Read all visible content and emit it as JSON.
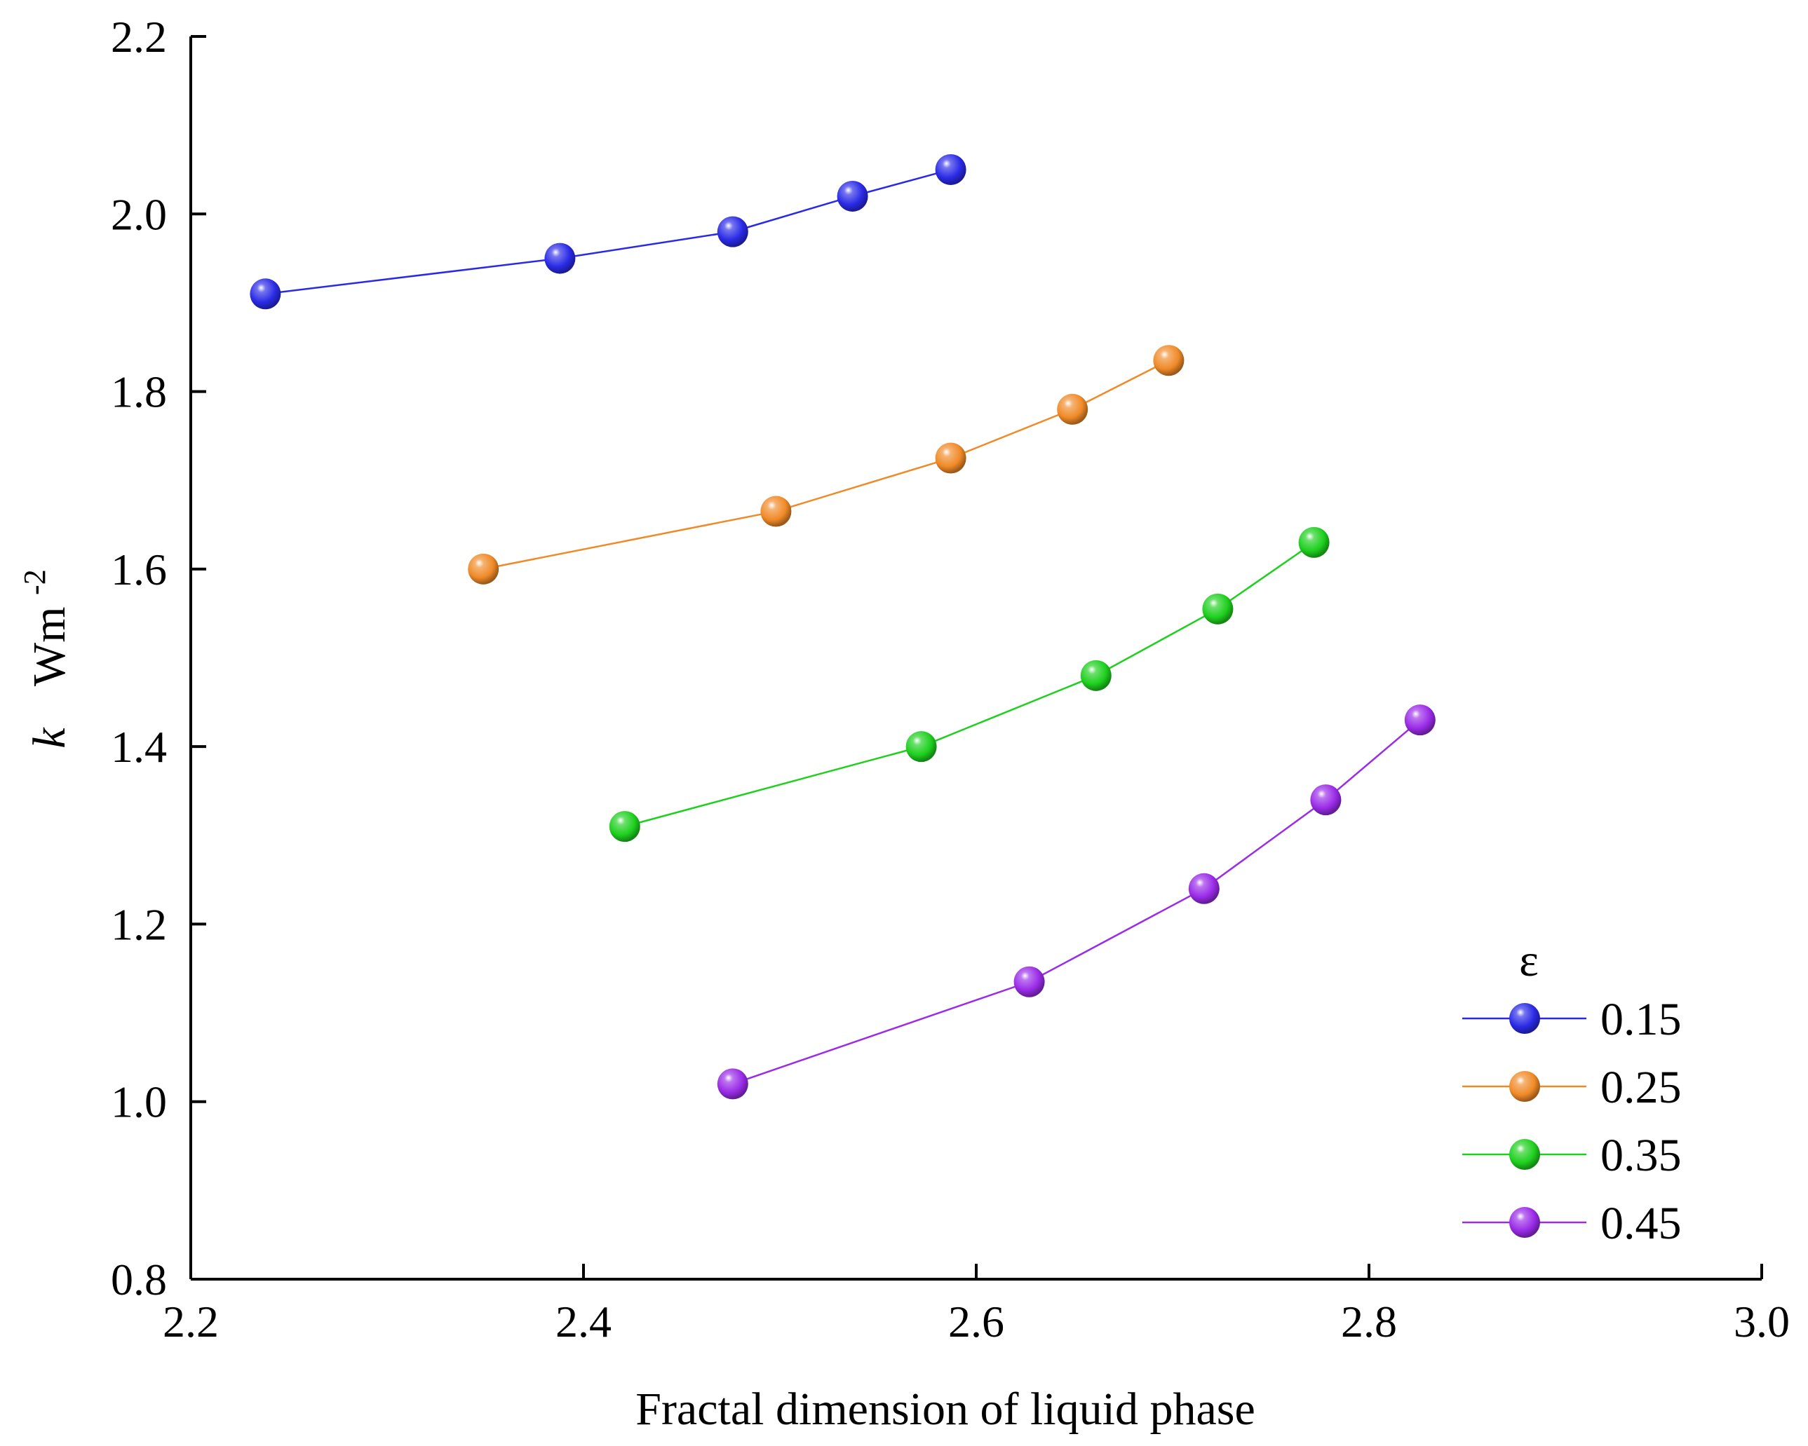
{
  "chart_data": {
    "type": "line",
    "title": "",
    "xlabel": "Fractal dimension of liquid phase",
    "ylabel_symbol": "k",
    "ylabel_unit": "Wm",
    "ylabel_unit_exponent": "-2",
    "xlim": [
      2.2,
      3.0
    ],
    "ylim": [
      0.8,
      2.2
    ],
    "xticks": [
      "2.2",
      "2.4",
      "2.6",
      "2.8",
      "3.0"
    ],
    "yticks": [
      "0.8",
      "1.0",
      "1.2",
      "1.4",
      "1.6",
      "1.8",
      "2.0",
      "2.2"
    ],
    "grid": false,
    "legend_title": "ε",
    "legend_position": "bottom-right",
    "series": [
      {
        "name": "0.15",
        "color": "#2a2ae6",
        "x": [
          2.238,
          2.388,
          2.476,
          2.537,
          2.587
        ],
        "y": [
          1.91,
          1.95,
          1.98,
          2.02,
          2.05
        ]
      },
      {
        "name": "0.25",
        "color": "#f08a28",
        "x": [
          2.349,
          2.498,
          2.587,
          2.649,
          2.698
        ],
        "y": [
          1.6,
          1.665,
          1.725,
          1.78,
          1.835
        ]
      },
      {
        "name": "0.35",
        "color": "#1ed01e",
        "x": [
          2.421,
          2.572,
          2.661,
          2.723,
          2.772
        ],
        "y": [
          1.31,
          1.4,
          1.48,
          1.555,
          1.63
        ]
      },
      {
        "name": "0.45",
        "color": "#9a2be8",
        "x": [
          2.476,
          2.627,
          2.716,
          2.778,
          2.826
        ],
        "y": [
          1.02,
          1.135,
          1.24,
          1.34,
          1.43
        ]
      }
    ]
  }
}
